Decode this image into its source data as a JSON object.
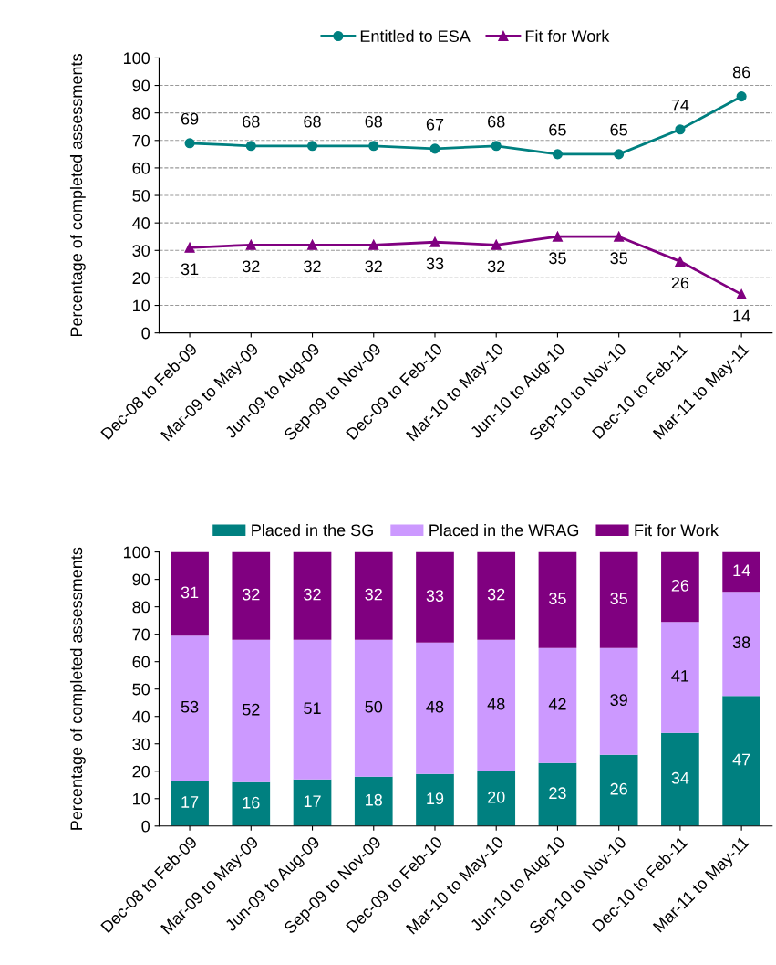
{
  "chart_data": [
    {
      "type": "line",
      "ylabel": "Percentage of completed assessments",
      "categories": [
        "Dec-08 to Feb-09",
        "Mar-09 to May-09",
        "Jun-09 to Aug-09",
        "Sep-09 to Nov-09",
        "Dec-09 to Feb-10",
        "Mar-10 to May-10",
        "Jun-10 to Aug-10",
        "Sep-10 to Nov-10",
        "Dec-10 to Feb-11",
        "Mar-11 to May-11"
      ],
      "series": [
        {
          "name": "Entitled to ESA",
          "color": "#008080",
          "marker": "circle",
          "values": [
            69,
            68,
            68,
            68,
            67,
            68,
            65,
            65,
            74,
            86
          ]
        },
        {
          "name": "Fit for Work",
          "color": "#800080",
          "marker": "triangle",
          "values": [
            31,
            32,
            32,
            32,
            33,
            32,
            35,
            35,
            26,
            14
          ]
        }
      ],
      "ylim": [
        0,
        100
      ],
      "yticks": [
        0,
        10,
        20,
        30,
        40,
        50,
        60,
        70,
        80,
        90,
        100
      ],
      "grid": "y",
      "legend": "top",
      "data_labels": true
    },
    {
      "type": "bar",
      "stacked": true,
      "ylabel": "Percentage of completed assessments",
      "categories": [
        "Dec-08 to Feb-09",
        "Mar-09 to May-09",
        "Jun-09 to Aug-09",
        "Sep-09 to Nov-09",
        "Dec-09 to Feb-10",
        "Mar-10 to May-10",
        "Jun-10 to Aug-10",
        "Sep-10 to Nov-10",
        "Dec-10 to Feb-11",
        "Mar-11 to May-11"
      ],
      "series": [
        {
          "name": "Placed in the SG",
          "color": "#008080",
          "values": [
            16.5,
            16,
            17,
            18,
            19,
            20,
            23,
            26,
            34,
            47.5
          ],
          "value_labels": [
            "17",
            "16",
            "17",
            "18",
            "19",
            "20",
            "23",
            "26",
            "34",
            "47"
          ]
        },
        {
          "name": "Placed in the WRAG",
          "color": "#cc99ff",
          "values": [
            53,
            52,
            51,
            50,
            48,
            48,
            42,
            39,
            40.5,
            38
          ],
          "value_labels": [
            "53",
            "52",
            "51",
            "50",
            "48",
            "48",
            "42",
            "39",
            "41",
            "38"
          ]
        },
        {
          "name": "Fit for Work",
          "color": "#800080",
          "values": [
            30.5,
            32,
            32,
            32,
            33,
            32,
            35,
            35,
            25.5,
            14.5
          ],
          "value_labels": [
            "31",
            "32",
            "32",
            "32",
            "33",
            "32",
            "35",
            "35",
            "26",
            "14"
          ]
        }
      ],
      "ylim": [
        0,
        100
      ],
      "yticks": [
        0,
        10,
        20,
        30,
        40,
        50,
        60,
        70,
        80,
        90,
        100
      ],
      "grid": false,
      "legend": "top"
    }
  ]
}
